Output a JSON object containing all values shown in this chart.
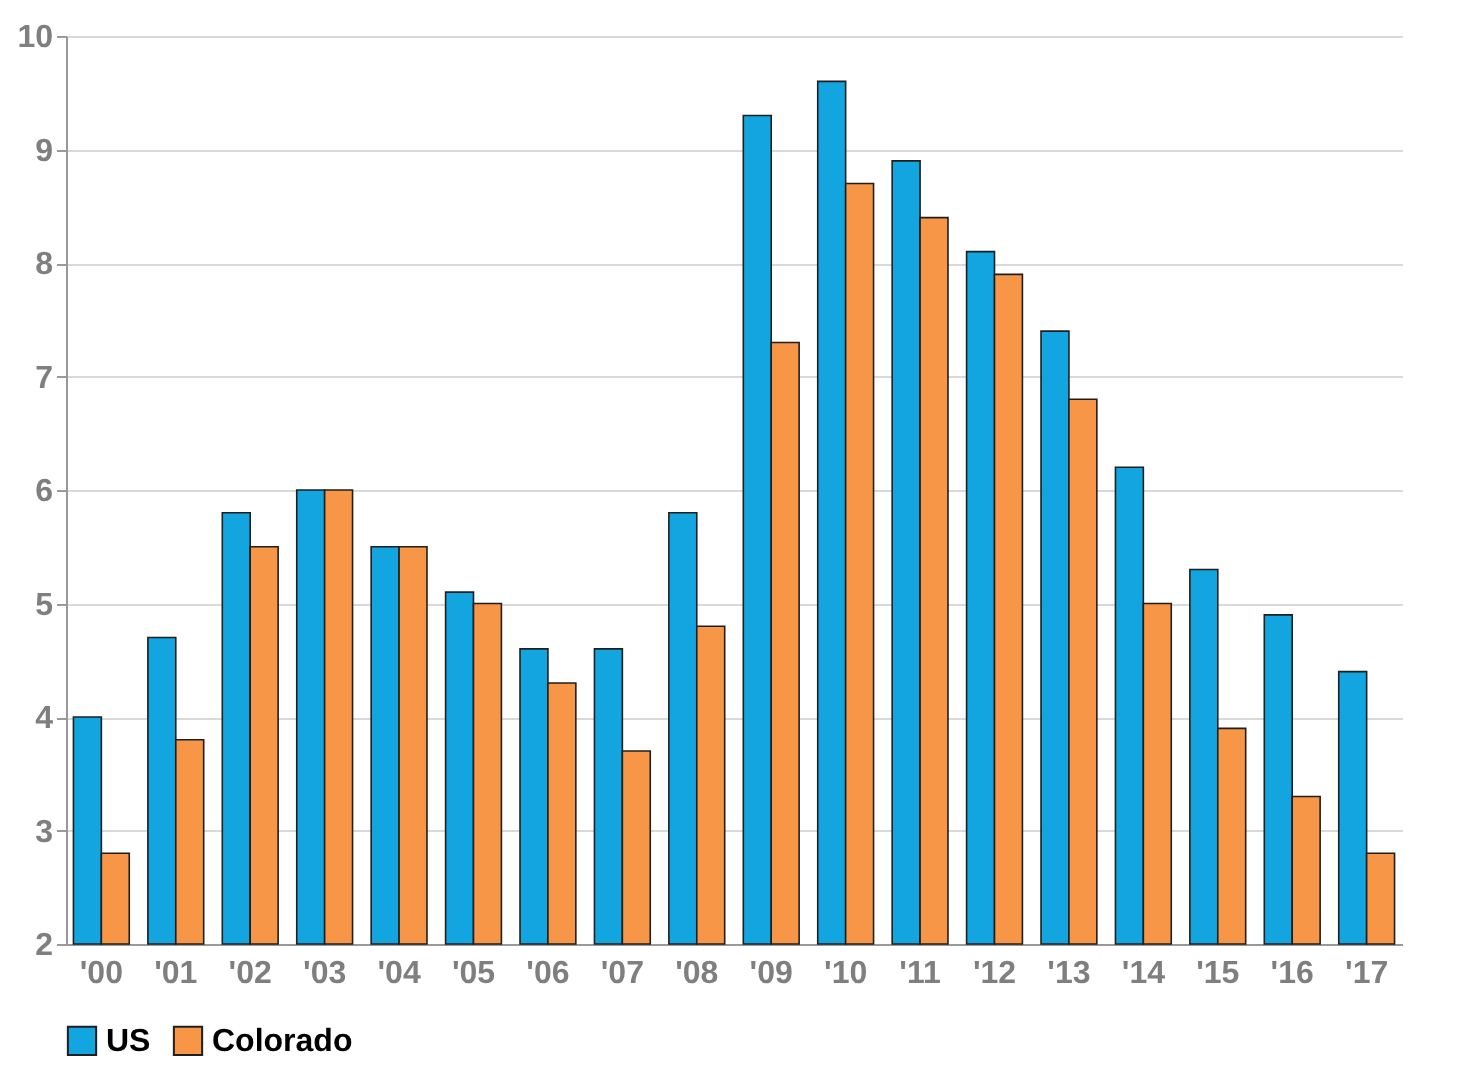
{
  "chart_data": {
    "type": "bar",
    "categories": [
      "'00",
      "'01",
      "'02",
      "'03",
      "'04",
      "'05",
      "'06",
      "'07",
      "'08",
      "'09",
      "'10",
      "'11",
      "'12",
      "'13",
      "'14",
      "'15",
      "'16",
      "'17"
    ],
    "series": [
      {
        "name": "US",
        "color": "#12a5e0",
        "values": [
          4.0,
          4.7,
          5.8,
          6.0,
          5.5,
          5.1,
          4.6,
          4.6,
          5.8,
          9.3,
          9.6,
          8.9,
          8.1,
          7.4,
          6.2,
          5.3,
          4.9,
          4.4
        ]
      },
      {
        "name": "Colorado",
        "color": "#f79646",
        "values": [
          2.8,
          3.8,
          5.5,
          6.0,
          5.5,
          5.0,
          4.3,
          3.7,
          4.8,
          7.3,
          8.7,
          8.4,
          7.9,
          6.8,
          5.0,
          3.9,
          3.3,
          2.8
        ]
      }
    ],
    "ylim": [
      2,
      10
    ],
    "yticks": [
      2,
      3,
      4,
      5,
      6,
      7,
      8,
      9,
      10
    ],
    "grid": "y",
    "legend": "bottom"
  }
}
